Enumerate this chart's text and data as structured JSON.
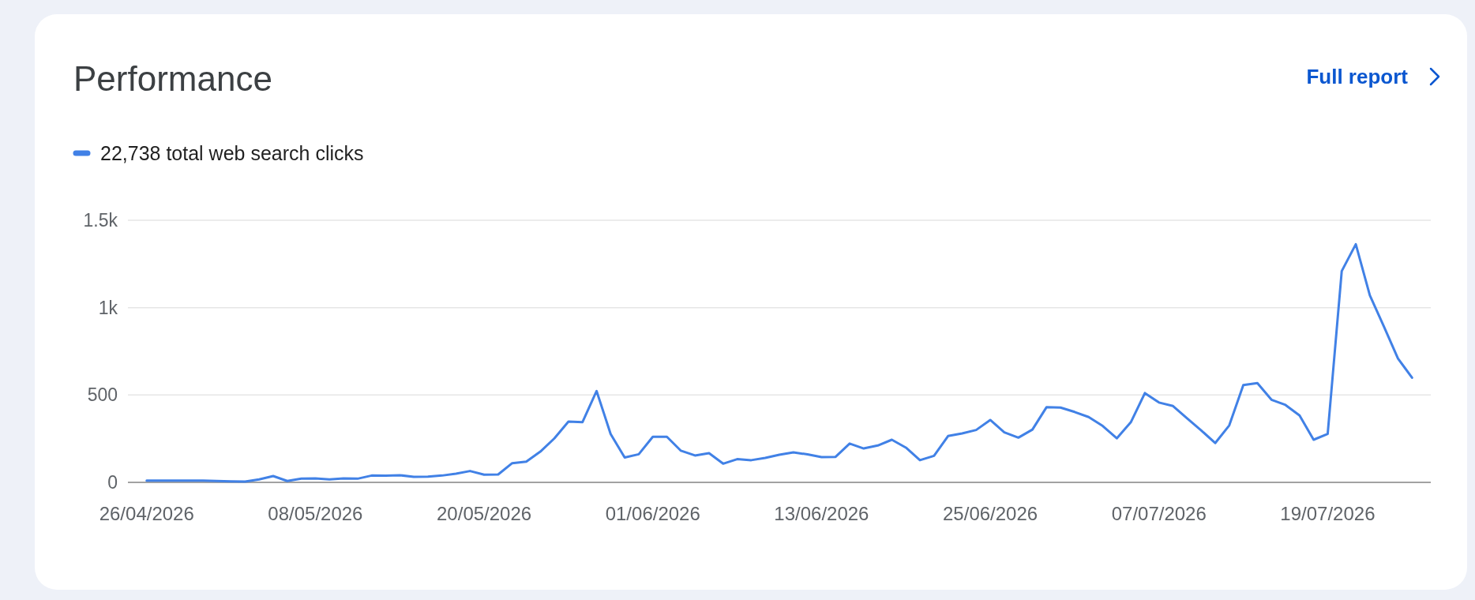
{
  "chart_data": {
    "type": "line",
    "title": "Performance",
    "annotations": [
      "Full report"
    ],
    "x": [
      "2026-04-26",
      "2026-04-27",
      "2026-04-28",
      "2026-04-29",
      "2026-04-30",
      "2026-05-01",
      "2026-05-02",
      "2026-05-03",
      "2026-05-04",
      "2026-05-05",
      "2026-05-06",
      "2026-05-07",
      "2026-05-08",
      "2026-05-09",
      "2026-05-10",
      "2026-05-11",
      "2026-05-12",
      "2026-05-13",
      "2026-05-14",
      "2026-05-15",
      "2026-05-16",
      "2026-05-17",
      "2026-05-18",
      "2026-05-19",
      "2026-05-20",
      "2026-05-21",
      "2026-05-22",
      "2026-05-23",
      "2026-05-24",
      "2026-05-25",
      "2026-05-26",
      "2026-05-27",
      "2026-05-28",
      "2026-05-29",
      "2026-05-30",
      "2026-05-31",
      "2026-06-01",
      "2026-06-02",
      "2026-06-03",
      "2026-06-04",
      "2026-06-05",
      "2026-06-06",
      "2026-06-07",
      "2026-06-08",
      "2026-06-09",
      "2026-06-10",
      "2026-06-11",
      "2026-06-12",
      "2026-06-13",
      "2026-06-14",
      "2026-06-15",
      "2026-06-16",
      "2026-06-17",
      "2026-06-18",
      "2026-06-19",
      "2026-06-20",
      "2026-06-21",
      "2026-06-22",
      "2026-06-23",
      "2026-06-24",
      "2026-06-25",
      "2026-06-26",
      "2026-06-27",
      "2026-06-28",
      "2026-06-29",
      "2026-06-30",
      "2026-07-01",
      "2026-07-02",
      "2026-07-03",
      "2026-07-04",
      "2026-07-05",
      "2026-07-06",
      "2026-07-07",
      "2026-07-08",
      "2026-07-09",
      "2026-07-10",
      "2026-07-11",
      "2026-07-12",
      "2026-07-13",
      "2026-07-14",
      "2026-07-15",
      "2026-07-16",
      "2026-07-17",
      "2026-07-18",
      "2026-07-19",
      "2026-07-20",
      "2026-07-21",
      "2026-07-22",
      "2026-07-23",
      "2026-07-24",
      "2026-07-25"
    ],
    "series": [
      {
        "name": "22,738 total web search clicks",
        "color": "#4181e6",
        "values": [
          10,
          10,
          10,
          10,
          10,
          8,
          6,
          5,
          17,
          36,
          8,
          21,
          23,
          17,
          23,
          21,
          39,
          38,
          41,
          32,
          33,
          39,
          50,
          65,
          44,
          45,
          110,
          119,
          176,
          252,
          348,
          345,
          523,
          277,
          142,
          161,
          261,
          261,
          181,
          154,
          167,
          107,
          133,
          127,
          140,
          158,
          172,
          160,
          145,
          146,
          222,
          194,
          211,
          244,
          199,
          127,
          152,
          265,
          280,
          300,
          357,
          286,
          256,
          302,
          430,
          428,
          403,
          374,
          323,
          252,
          344,
          511,
          457,
          437,
          366,
          298,
          225,
          326,
          557,
          568,
          473,
          443,
          383,
          244,
          277,
          1209,
          1363,
          1070,
          892,
          709,
          599
        ]
      }
    ],
    "xlim": [
      "2026-04-24T16:00",
      "2026-07-26T08:00"
    ],
    "xticks": [
      {
        "value": "2026-04-26",
        "label": "26/04/2026"
      },
      {
        "value": "2026-05-08",
        "label": "08/05/2026"
      },
      {
        "value": "2026-05-20",
        "label": "20/05/2026"
      },
      {
        "value": "2026-06-01",
        "label": "01/06/2026"
      },
      {
        "value": "2026-06-13",
        "label": "13/06/2026"
      },
      {
        "value": "2026-06-25",
        "label": "25/06/2026"
      },
      {
        "value": "2026-07-07",
        "label": "07/07/2026"
      },
      {
        "value": "2026-07-19",
        "label": "19/07/2026"
      }
    ],
    "ylim": [
      0,
      1500
    ],
    "yticks": [
      0,
      500,
      {
        "value": 1000,
        "label": "1k"
      },
      {
        "value": 1500,
        "label": "1.5k"
      }
    ],
    "grid": "y",
    "legend": "top left",
    "line_style": "solid"
  }
}
